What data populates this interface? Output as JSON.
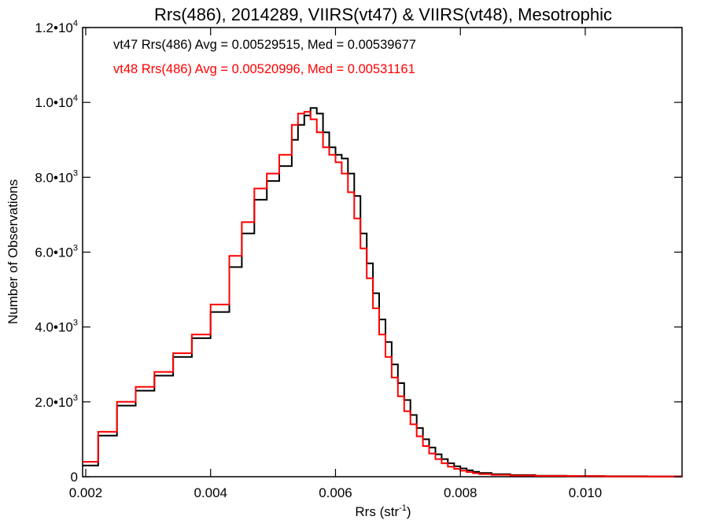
{
  "chart_data": {
    "type": "line",
    "title": "Rrs(486), 2014289, VIIRS(vt47) & VIIRS(vt48), Mesotrophic",
    "xlabel": "Rrs (str",
    "xlabel_sup": "-1",
    "xlabel_end": ")",
    "ylabel": "Number of Observations",
    "xlim": [
      0.00195,
      0.01155
    ],
    "ylim": [
      0,
      12000
    ],
    "grid": false,
    "legend_position": "top-left",
    "x_ticks": [
      {
        "value": 0.002,
        "label": "0.002"
      },
      {
        "value": 0.004,
        "label": "0.004"
      },
      {
        "value": 0.006,
        "label": "0.006"
      },
      {
        "value": 0.008,
        "label": "0.008"
      },
      {
        "value": 0.01,
        "label": "0.010"
      }
    ],
    "y_ticks": [
      {
        "value": 0,
        "mant": "0",
        "exp": ""
      },
      {
        "value": 2000,
        "mant": "2.0•10",
        "exp": "3"
      },
      {
        "value": 4000,
        "mant": "4.0•10",
        "exp": "3"
      },
      {
        "value": 6000,
        "mant": "6.0•10",
        "exp": "3"
      },
      {
        "value": 8000,
        "mant": "8.0•10",
        "exp": "3"
      },
      {
        "value": 10000,
        "mant": "1.0•10",
        "exp": "4"
      },
      {
        "value": 12000,
        "mant": "1.2•10",
        "exp": "4"
      }
    ],
    "annotations": [
      {
        "text": "vt47 Rrs(486) Avg = 0.00529515, Med = 0.00539677",
        "color": "#000000"
      },
      {
        "text": "vt48 Rrs(486) Avg = 0.00520996, Med = 0.00531161",
        "color": "#ff0000"
      }
    ],
    "series": [
      {
        "color": "#000000",
        "x": [
          0.00195,
          0.0022,
          0.0025,
          0.0028,
          0.0031,
          0.0034,
          0.0037,
          0.004,
          0.0043,
          0.0045,
          0.0047,
          0.0049,
          0.0051,
          0.0053,
          0.0054,
          0.0055,
          0.0056,
          0.0057,
          0.0058,
          0.0059,
          0.006,
          0.0061,
          0.0062,
          0.0063,
          0.0064,
          0.0065,
          0.0066,
          0.0067,
          0.0068,
          0.0069,
          0.007,
          0.0071,
          0.0072,
          0.0073,
          0.0074,
          0.0075,
          0.0076,
          0.0077,
          0.0078,
          0.0079,
          0.008,
          0.0081,
          0.0082,
          0.0083,
          0.0085,
          0.0088,
          0.0092,
          0.0097,
          0.0103,
          0.011,
          0.01155
        ],
        "y": [
          300,
          1100,
          1900,
          2300,
          2700,
          3200,
          3700,
          4400,
          5600,
          6500,
          7400,
          7900,
          8300,
          9000,
          9400,
          9650,
          9850,
          9700,
          9200,
          8800,
          8600,
          8500,
          8100,
          7500,
          6500,
          5700,
          4900,
          4200,
          3600,
          3000,
          2500,
          2050,
          1650,
          1300,
          1000,
          780,
          600,
          470,
          360,
          280,
          220,
          170,
          130,
          100,
          70,
          45,
          28,
          18,
          12,
          8,
          6
        ]
      },
      {
        "color": "#ff0000",
        "x": [
          0.00195,
          0.0022,
          0.0025,
          0.0028,
          0.0031,
          0.0034,
          0.0037,
          0.004,
          0.0043,
          0.0045,
          0.0047,
          0.0049,
          0.0051,
          0.0053,
          0.0054,
          0.0055,
          0.0056,
          0.0057,
          0.0058,
          0.0059,
          0.006,
          0.0061,
          0.0062,
          0.0063,
          0.0064,
          0.0065,
          0.0066,
          0.0067,
          0.0068,
          0.0069,
          0.007,
          0.0071,
          0.0072,
          0.0073,
          0.0074,
          0.0075,
          0.0076,
          0.0077,
          0.0078,
          0.0079,
          0.008,
          0.0081,
          0.0082,
          0.0083,
          0.0085,
          0.0088,
          0.0092,
          0.0097,
          0.0103,
          0.011,
          0.01155
        ],
        "y": [
          400,
          1200,
          2000,
          2400,
          2800,
          3300,
          3800,
          4600,
          5900,
          6800,
          7700,
          8100,
          8600,
          9400,
          9700,
          9750,
          9550,
          9200,
          8800,
          8600,
          8400,
          8100,
          7600,
          6900,
          6100,
          5300,
          4500,
          3800,
          3200,
          2650,
          2150,
          1750,
          1400,
          1080,
          820,
          620,
          470,
          360,
          270,
          210,
          160,
          125,
          95,
          72,
          50,
          32,
          20,
          14,
          9,
          6,
          5
        ]
      }
    ]
  }
}
